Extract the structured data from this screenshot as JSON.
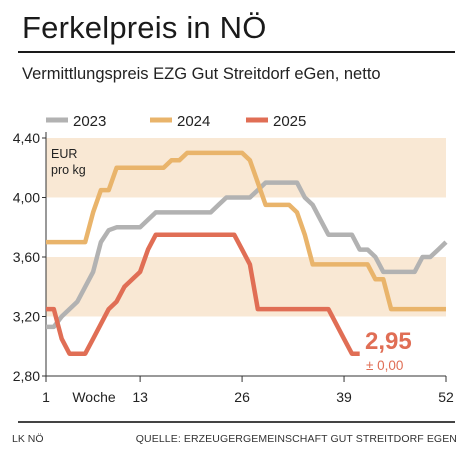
{
  "header": {
    "title": "Ferkelpreis in NÖ",
    "subtitle": "Vermittlungspreis EZG Gut Streitdorf eGen, netto"
  },
  "footer": {
    "left": "LK NÖ",
    "right": "QUELLE: ERZEUGERGEMEINSCHAFT GUT STREITDORF EGEN"
  },
  "colors": {
    "band": "#f9e8d4",
    "s2023": "#b2b2b2",
    "s2024": "#e9b46b",
    "s2025": "#e06e55",
    "axis": "#333333",
    "text": "#222222"
  },
  "chart_data": {
    "type": "line",
    "title": "Ferkelpreis in NÖ",
    "subtitle": "Vermittlungspreis EZG Gut Streitdorf eGen, netto",
    "ylabel": "EUR pro kg",
    "xlabel": "Woche",
    "ylim": [
      2.8,
      4.4
    ],
    "xlim": [
      1,
      52
    ],
    "yticks": [
      2.8,
      3.2,
      3.6,
      4.0,
      4.4
    ],
    "ytick_labels": [
      "2,80",
      "3,20",
      "3,60",
      "4,00",
      "4,40"
    ],
    "xticks": [
      1,
      13,
      26,
      39,
      52
    ],
    "xtick_labels": [
      "1",
      "13",
      "26",
      "39",
      "52"
    ],
    "legend_position": "top",
    "grid": false,
    "bands": [
      [
        3.2,
        3.6
      ],
      [
        4.0,
        4.4
      ]
    ],
    "annotation": {
      "value": "2,95",
      "change": "± 0,00"
    },
    "series": [
      {
        "name": "2023",
        "color": "#b2b2b2",
        "x": [
          1,
          2,
          3,
          4,
          5,
          6,
          7,
          8,
          9,
          10,
          11,
          12,
          13,
          14,
          15,
          16,
          17,
          18,
          19,
          20,
          21,
          22,
          23,
          24,
          25,
          26,
          27,
          28,
          29,
          30,
          31,
          32,
          33,
          34,
          35,
          36,
          37,
          38,
          39,
          40,
          41,
          42,
          43,
          44,
          45,
          46,
          47,
          48,
          49,
          50,
          51,
          52
        ],
        "y": [
          3.13,
          3.13,
          3.2,
          3.25,
          3.3,
          3.4,
          3.5,
          3.7,
          3.78,
          3.8,
          3.8,
          3.8,
          3.8,
          3.85,
          3.9,
          3.9,
          3.9,
          3.9,
          3.9,
          3.9,
          3.9,
          3.9,
          3.95,
          4.0,
          4.0,
          4.0,
          4.0,
          4.05,
          4.1,
          4.1,
          4.1,
          4.1,
          4.1,
          4.0,
          3.95,
          3.85,
          3.75,
          3.75,
          3.75,
          3.75,
          3.65,
          3.65,
          3.6,
          3.5,
          3.5,
          3.5,
          3.5,
          3.5,
          3.6,
          3.6,
          3.65,
          3.7
        ]
      },
      {
        "name": "2024",
        "color": "#e9b46b",
        "x": [
          1,
          2,
          3,
          4,
          5,
          6,
          7,
          8,
          9,
          10,
          11,
          12,
          13,
          14,
          15,
          16,
          17,
          18,
          19,
          20,
          21,
          22,
          23,
          24,
          25,
          26,
          27,
          28,
          29,
          30,
          31,
          32,
          33,
          34,
          35,
          36,
          37,
          38,
          39,
          40,
          41,
          42,
          43,
          44,
          45,
          46,
          47,
          48,
          49,
          50,
          51,
          52
        ],
        "y": [
          3.7,
          3.7,
          3.7,
          3.7,
          3.7,
          3.7,
          3.9,
          4.05,
          4.05,
          4.2,
          4.2,
          4.2,
          4.2,
          4.2,
          4.2,
          4.2,
          4.25,
          4.25,
          4.3,
          4.3,
          4.3,
          4.3,
          4.3,
          4.3,
          4.3,
          4.3,
          4.25,
          4.1,
          3.95,
          3.95,
          3.95,
          3.95,
          3.9,
          3.75,
          3.55,
          3.55,
          3.55,
          3.55,
          3.55,
          3.55,
          3.55,
          3.55,
          3.45,
          3.45,
          3.25,
          3.25,
          3.25,
          3.25,
          3.25,
          3.25,
          3.25,
          3.25
        ]
      },
      {
        "name": "2025",
        "color": "#e06e55",
        "x": [
          1,
          2,
          3,
          4,
          5,
          6,
          7,
          8,
          9,
          10,
          11,
          12,
          13,
          14,
          15,
          16,
          17,
          18,
          19,
          20,
          21,
          22,
          23,
          24,
          25,
          26,
          27,
          28,
          29,
          30,
          31,
          32,
          33,
          34,
          35,
          36,
          37,
          38,
          39,
          40,
          41
        ],
        "y": [
          3.25,
          3.25,
          3.05,
          2.95,
          2.95,
          2.95,
          3.05,
          3.15,
          3.25,
          3.3,
          3.4,
          3.45,
          3.5,
          3.65,
          3.75,
          3.75,
          3.75,
          3.75,
          3.75,
          3.75,
          3.75,
          3.75,
          3.75,
          3.75,
          3.75,
          3.65,
          3.55,
          3.25,
          3.25,
          3.25,
          3.25,
          3.25,
          3.25,
          3.25,
          3.25,
          3.25,
          3.25,
          3.15,
          3.05,
          2.95,
          2.95
        ]
      }
    ]
  }
}
